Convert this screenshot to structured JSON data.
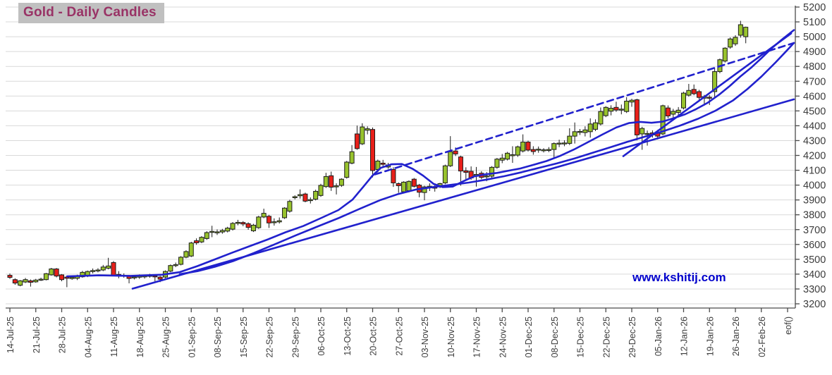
{
  "title": "Gold - Daily Candles",
  "watermark": "www.kshitij.com",
  "chart_data": {
    "type": "candlestick",
    "title": "Gold - Daily Candles",
    "grid": "horizontal",
    "legend": "none",
    "y_axis": {
      "min": 3200,
      "max": 5200,
      "step": 100,
      "side": "right"
    },
    "x_tick_labels": [
      "14-Jul-25",
      "21-Jul-25",
      "28-Jul-25",
      "04-Aug-25",
      "11-Aug-25",
      "18-Aug-25",
      "25-Aug-25",
      "01-Sep-25",
      "08-Sep-25",
      "15-Sep-25",
      "22-Sep-25",
      "29-Sep-25",
      "06-Oct-25",
      "13-Oct-25",
      "20-Oct-25",
      "27-Oct-25",
      "03-Nov-25",
      "10-Nov-25",
      "17-Nov-25",
      "24-Nov-25",
      "01-Dec-25",
      "08-Dec-25",
      "15-Dec-25",
      "22-Dec-25",
      "29-Dec-25",
      "05-Jan-26",
      "12-Jan-26",
      "19-Jan-26",
      "26-Jan-26",
      "02-Feb-26",
      "eof()"
    ],
    "candles_ohlc": [
      [
        3392,
        3404,
        3368,
        3378
      ],
      [
        3363,
        3372,
        3328,
        3340
      ],
      [
        3325,
        3360,
        3318,
        3355
      ],
      [
        3347,
        3374,
        3340,
        3363
      ],
      [
        3355,
        3364,
        3316,
        3345
      ],
      [
        3348,
        3368,
        3342,
        3360
      ],
      [
        3362,
        3376,
        3354,
        3366
      ],
      [
        3363,
        3408,
        3358,
        3403
      ],
      [
        3395,
        3442,
        3390,
        3435
      ],
      [
        3435,
        3441,
        3378,
        3387
      ],
      [
        3395,
        3400,
        3352,
        3363
      ],
      [
        3380,
        3390,
        3312,
        3372
      ],
      [
        3370,
        3388,
        3362,
        3378
      ],
      [
        3372,
        3396,
        3360,
        3388
      ],
      [
        3382,
        3422,
        3376,
        3412
      ],
      [
        3387,
        3424,
        3380,
        3418
      ],
      [
        3420,
        3438,
        3405,
        3424
      ],
      [
        3425,
        3440,
        3412,
        3428
      ],
      [
        3428,
        3462,
        3420,
        3448
      ],
      [
        3440,
        3510,
        3432,
        3455
      ],
      [
        3478,
        3488,
        3385,
        3392
      ],
      [
        3398,
        3420,
        3372,
        3394
      ],
      [
        3390,
        3405,
        3376,
        3392
      ],
      [
        3385,
        3394,
        3338,
        3371
      ],
      [
        3376,
        3390,
        3364,
        3381
      ],
      [
        3383,
        3398,
        3368,
        3386
      ],
      [
        3384,
        3395,
        3370,
        3388
      ],
      [
        3386,
        3402,
        3376,
        3392
      ],
      [
        3388,
        3398,
        3352,
        3384
      ],
      [
        3380,
        3388,
        3346,
        3366
      ],
      [
        3380,
        3425,
        3373,
        3418
      ],
      [
        3420,
        3465,
        3413,
        3458
      ],
      [
        3458,
        3478,
        3447,
        3464
      ],
      [
        3466,
        3521,
        3459,
        3514
      ],
      [
        3514,
        3561,
        3507,
        3552
      ],
      [
        3522,
        3618,
        3515,
        3610
      ],
      [
        3625,
        3641,
        3598,
        3611
      ],
      [
        3617,
        3656,
        3609,
        3648
      ],
      [
        3640,
        3689,
        3631,
        3680
      ],
      [
        3682,
        3726,
        3649,
        3688
      ],
      [
        3678,
        3701,
        3664,
        3685
      ],
      [
        3684,
        3705,
        3672,
        3694
      ],
      [
        3690,
        3719,
        3681,
        3710
      ],
      [
        3703,
        3751,
        3694,
        3742
      ],
      [
        3742,
        3766,
        3729,
        3749
      ],
      [
        3748,
        3757,
        3723,
        3738
      ],
      [
        3740,
        3749,
        3699,
        3715
      ],
      [
        3692,
        3739,
        3684,
        3730
      ],
      [
        3713,
        3793,
        3705,
        3785
      ],
      [
        3785,
        3841,
        3777,
        3810
      ],
      [
        3790,
        3799,
        3711,
        3745
      ],
      [
        3748,
        3776,
        3727,
        3753
      ],
      [
        3752,
        3782,
        3741,
        3760
      ],
      [
        3780,
        3851,
        3772,
        3845
      ],
      [
        3824,
        3901,
        3814,
        3890
      ],
      [
        3915,
        3931,
        3904,
        3922
      ],
      [
        3928,
        3971,
        3909,
        3936
      ],
      [
        3940,
        3949,
        3884,
        3892
      ],
      [
        3896,
        3917,
        3876,
        3902
      ],
      [
        3905,
        3969,
        3897,
        3958
      ],
      [
        3930,
        4009,
        3921,
        3998
      ],
      [
        3990,
        4083,
        3981,
        4058
      ],
      [
        4063,
        4091,
        3961,
        3986
      ],
      [
        3988,
        4012,
        3937,
        3995
      ],
      [
        3998,
        4046,
        3988,
        4040
      ],
      [
        4052,
        4163,
        4044,
        4155
      ],
      [
        4148,
        4270,
        4140,
        4225
      ],
      [
        4345,
        4401,
        4238,
        4246
      ],
      [
        4278,
        4417,
        4270,
        4392
      ],
      [
        4370,
        4396,
        4342,
        4380
      ],
      [
        4375,
        4388,
        4052,
        4098
      ],
      [
        4105,
        4172,
        4086,
        4162
      ],
      [
        4148,
        4170,
        4120,
        4140
      ],
      [
        4122,
        4150,
        4110,
        4136
      ],
      [
        4105,
        4120,
        3988,
        4015
      ],
      [
        4010,
        4018,
        3948,
        3996
      ],
      [
        3955,
        4026,
        3947,
        4020
      ],
      [
        3962,
        4032,
        3952,
        4025
      ],
      [
        4040,
        4048,
        3984,
        3992
      ],
      [
        4000,
        4008,
        3918,
        3952
      ],
      [
        3950,
        3996,
        3898,
        3988
      ],
      [
        3985,
        4012,
        3960,
        3992
      ],
      [
        3986,
        4006,
        3956,
        3980
      ],
      [
        3990,
        4016,
        3980,
        4010
      ],
      [
        4015,
        4138,
        4006,
        4130
      ],
      [
        4130,
        4330,
        4122,
        4225
      ],
      [
        4230,
        4254,
        4196,
        4210
      ],
      [
        4190,
        4198,
        3996,
        4095
      ],
      [
        4096,
        4120,
        4038,
        4086
      ],
      [
        4093,
        4126,
        4036,
        4048
      ],
      [
        4068,
        4122,
        3990,
        4072
      ],
      [
        4080,
        4094,
        4040,
        4052
      ],
      [
        4056,
        4088,
        4026,
        4062
      ],
      [
        4060,
        4128,
        4050,
        4120
      ],
      [
        4120,
        4183,
        4110,
        4175
      ],
      [
        4168,
        4210,
        4148,
        4182
      ],
      [
        4175,
        4224,
        4166,
        4215
      ],
      [
        4198,
        4262,
        4150,
        4205
      ],
      [
        4202,
        4266,
        4190,
        4258
      ],
      [
        4230,
        4342,
        4220,
        4290
      ],
      [
        4290,
        4299,
        4226,
        4236
      ],
      [
        4240,
        4262,
        4205,
        4226
      ],
      [
        4238,
        4260,
        4218,
        4242
      ],
      [
        4235,
        4249,
        4220,
        4238
      ],
      [
        4236,
        4256,
        4222,
        4240
      ],
      [
        4240,
        4288,
        4180,
        4280
      ],
      [
        4278,
        4306,
        4256,
        4283
      ],
      [
        4280,
        4302,
        4262,
        4284
      ],
      [
        4281,
        4383,
        4270,
        4330
      ],
      [
        4330,
        4422,
        4280,
        4360
      ],
      [
        4356,
        4378,
        4338,
        4362
      ],
      [
        4354,
        4396,
        4328,
        4372
      ],
      [
        4360,
        4450,
        4320,
        4412
      ],
      [
        4376,
        4443,
        4364,
        4420
      ],
      [
        4412,
        4523,
        4402,
        4496
      ],
      [
        4468,
        4532,
        4458,
        4524
      ],
      [
        4498,
        4538,
        4470,
        4518
      ],
      [
        4524,
        4562,
        4494,
        4506
      ],
      [
        4506,
        4543,
        4477,
        4512
      ],
      [
        4496,
        4593,
        4486,
        4566
      ],
      [
        4560,
        4582,
        4528,
        4572
      ],
      [
        4575,
        4582,
        4302,
        4338
      ],
      [
        4345,
        4393,
        4238,
        4382
      ],
      [
        4342,
        4368,
        4266,
        4348
      ],
      [
        4352,
        4369,
        4320,
        4338
      ],
      [
        4358,
        4372,
        4308,
        4330
      ],
      [
        4345,
        4542,
        4336,
        4535
      ],
      [
        4520,
        4537,
        4450,
        4466
      ],
      [
        4478,
        4514,
        4456,
        4497
      ],
      [
        4490,
        4526,
        4468,
        4505
      ],
      [
        4520,
        4629,
        4510,
        4620
      ],
      [
        4606,
        4682,
        4596,
        4638
      ],
      [
        4645,
        4678,
        4606,
        4616
      ],
      [
        4630,
        4642,
        4576,
        4591
      ],
      [
        4586,
        4608,
        4536,
        4596
      ],
      [
        4592,
        4606,
        4540,
        4590
      ],
      [
        4630,
        4790,
        4588,
        4765
      ],
      [
        4765,
        4853,
        4754,
        4845
      ],
      [
        4836,
        4929,
        4826,
        4923
      ],
      [
        4930,
        4995,
        4919,
        4985
      ],
      [
        4952,
        5010,
        4938,
        4996
      ],
      [
        5010,
        5107,
        4994,
        5081
      ],
      [
        5000,
        5068,
        4956,
        5064
      ]
    ],
    "overlays": {
      "ma_fast": [
        [
          95,
          3385
        ],
        [
          140,
          3392
        ],
        [
          185,
          3388
        ],
        [
          230,
          3396
        ],
        [
          255,
          3414
        ],
        [
          280,
          3454
        ],
        [
          305,
          3500
        ],
        [
          330,
          3546
        ],
        [
          355,
          3590
        ],
        [
          380,
          3634
        ],
        [
          405,
          3682
        ],
        [
          430,
          3724
        ],
        [
          455,
          3777
        ],
        [
          480,
          3832
        ],
        [
          500,
          3902
        ],
        [
          515,
          3987
        ],
        [
          528,
          4062
        ],
        [
          540,
          4116
        ],
        [
          555,
          4140
        ],
        [
          570,
          4142
        ],
        [
          585,
          4110
        ],
        [
          600,
          4064
        ],
        [
          615,
          4008
        ],
        [
          628,
          3986
        ],
        [
          642,
          3990
        ],
        [
          658,
          4028
        ],
        [
          672,
          4058
        ],
        [
          688,
          4072
        ],
        [
          705,
          4082
        ],
        [
          722,
          4098
        ],
        [
          738,
          4112
        ],
        [
          756,
          4136
        ],
        [
          775,
          4162
        ],
        [
          794,
          4196
        ],
        [
          814,
          4240
        ],
        [
          834,
          4290
        ],
        [
          854,
          4340
        ],
        [
          874,
          4388
        ],
        [
          892,
          4418
        ],
        [
          908,
          4426
        ],
        [
          924,
          4420
        ],
        [
          940,
          4428
        ],
        [
          956,
          4452
        ],
        [
          972,
          4478
        ],
        [
          988,
          4514
        ],
        [
          1004,
          4556
        ],
        [
          1020,
          4610
        ],
        [
          1035,
          4668
        ],
        [
          1050,
          4732
        ],
        [
          1065,
          4790
        ],
        [
          1080,
          4856
        ],
        [
          1095,
          4925
        ],
        [
          1110,
          4985
        ],
        [
          1126,
          5045
        ]
      ],
      "ma_slow": [
        [
          255,
          3400
        ],
        [
          280,
          3420
        ],
        [
          305,
          3450
        ],
        [
          330,
          3487
        ],
        [
          360,
          3542
        ],
        [
          390,
          3602
        ],
        [
          420,
          3662
        ],
        [
          450,
          3720
        ],
        [
          480,
          3777
        ],
        [
          510,
          3840
        ],
        [
          540,
          3900
        ],
        [
          565,
          3940
        ],
        [
          590,
          3970
        ],
        [
          615,
          3987
        ],
        [
          640,
          4002
        ],
        [
          665,
          4017
        ],
        [
          690,
          4037
        ],
        [
          715,
          4060
        ],
        [
          740,
          4087
        ],
        [
          765,
          4117
        ],
        [
          790,
          4147
        ],
        [
          815,
          4180
        ],
        [
          840,
          4217
        ],
        [
          865,
          4254
        ],
        [
          890,
          4292
        ],
        [
          915,
          4327
        ],
        [
          940,
          4362
        ],
        [
          965,
          4402
        ],
        [
          990,
          4447
        ],
        [
          1015,
          4502
        ],
        [
          1040,
          4572
        ],
        [
          1060,
          4647
        ],
        [
          1080,
          4732
        ],
        [
          1100,
          4827
        ],
        [
          1115,
          4902
        ],
        [
          1126,
          4958
        ]
      ],
      "trendline_support": {
        "style": "solid",
        "from": [
          188,
          3302
        ],
        "to": [
          1126,
          4578
        ]
      },
      "trendline_dashed": {
        "style": "dashed",
        "from": [
          532,
          4072
        ],
        "to": [
          1126,
          4958
        ]
      },
      "trendline_steep": {
        "style": "solid",
        "from": [
          884,
          4195
        ],
        "to": [
          1122,
          5022
        ]
      }
    },
    "colors": {
      "bull": "#98c32d",
      "bear": "#e8201a",
      "candle_outline": "#1c1c1c",
      "wick": "#1a1a1a",
      "line_blue": "#2121cd",
      "grid": "#d9d9d9",
      "axis": "#4a4a4a",
      "tick_text": "#3c3c3c",
      "title_fg": "#993366",
      "title_bg": "#c0c0c0",
      "watermark": "#0000cc"
    }
  }
}
